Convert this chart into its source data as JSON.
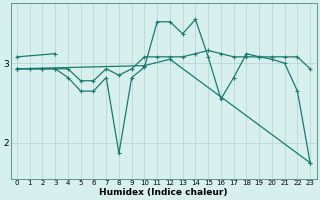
{
  "title": "",
  "xlabel": "Humidex (Indice chaleur)",
  "background_color": "#d7f0ee",
  "grid_color": "#b8d8d5",
  "line_color": "#1a7a6e",
  "ylim": [
    1.55,
    3.75
  ],
  "yticks": [
    2,
    3
  ],
  "xlim": [
    -0.5,
    23.5
  ],
  "line1_x": [
    0,
    1,
    2,
    3,
    4,
    5,
    6,
    7,
    8,
    9,
    10,
    11,
    12,
    13,
    14,
    15,
    16,
    17,
    18,
    19,
    20,
    21,
    22,
    23
  ],
  "line1_y": [
    2.93,
    2.93,
    2.93,
    2.93,
    2.93,
    2.78,
    2.78,
    2.93,
    2.85,
    2.93,
    3.08,
    3.08,
    3.08,
    3.08,
    3.12,
    3.16,
    3.12,
    3.08,
    3.08,
    3.08,
    3.08,
    3.08,
    3.08,
    2.93
  ],
  "line2_x": [
    0,
    2,
    3,
    4,
    5,
    6,
    7,
    8,
    9,
    10,
    11,
    12,
    13,
    14,
    15,
    16,
    17,
    18,
    19,
    20,
    21,
    22,
    23
  ],
  "line2_y": [
    2.93,
    2.93,
    2.93,
    2.82,
    2.65,
    2.65,
    2.82,
    1.87,
    2.82,
    2.95,
    3.52,
    3.52,
    3.37,
    3.55,
    3.08,
    2.55,
    2.82,
    3.12,
    3.08,
    3.05,
    3.0,
    2.65,
    1.75
  ],
  "line3_x": [
    0,
    3
  ],
  "line3_y": [
    3.08,
    3.12
  ],
  "line4_x": [
    0,
    10,
    12,
    23
  ],
  "line4_y": [
    2.93,
    2.97,
    3.05,
    1.75
  ]
}
